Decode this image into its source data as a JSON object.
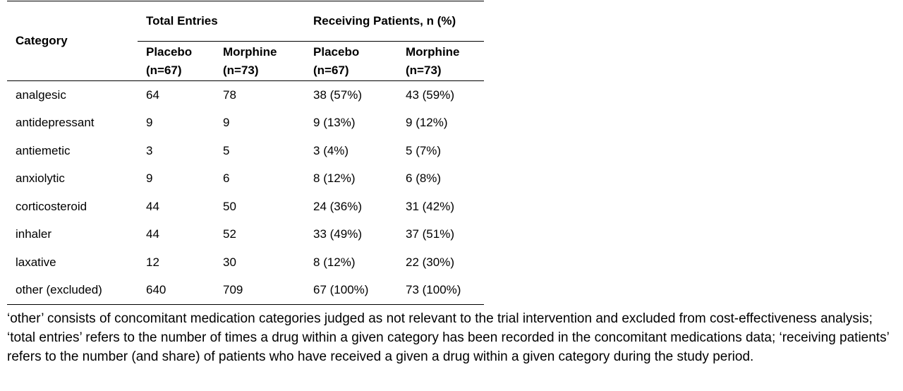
{
  "table": {
    "header": {
      "category": "Category",
      "groups": [
        "Total Entries",
        "Receiving Patients, n (%)"
      ],
      "subheaders": [
        "Placebo (n=67)",
        "Morphine (n=73)",
        "Placebo (n=67)",
        "Morphine (n=73)"
      ]
    },
    "rows": [
      [
        "analgesic",
        64,
        78,
        "38 (57%)",
        "43 (59%)"
      ],
      [
        "antidepressant",
        9,
        9,
        "9 (13%)",
        "9 (12%)"
      ],
      [
        "antiemetic",
        3,
        5,
        "3 (4%)",
        "5 (7%)"
      ],
      [
        "anxiolytic",
        9,
        6,
        "8 (12%)",
        "6 (8%)"
      ],
      [
        "corticosteroid",
        44,
        50,
        "24 (36%)",
        "31 (42%)"
      ],
      [
        "inhaler",
        44,
        52,
        "33 (49%)",
        "37 (51%)"
      ],
      [
        "laxative",
        12,
        30,
        "8 (12%)",
        "22 (30%)"
      ],
      [
        "other (excluded)",
        640,
        709,
        "67 (100%)",
        "73 (100%)"
      ]
    ]
  },
  "footnote": "‘other’ consists of concomitant medication categories judged as not relevant to the trial intervention and excluded from cost-effectiveness analysis; ‘total entries’ refers to the number of times a drug within a given category has been recorded in the concomitant medications data; ‘receiving patients’ refers to the number (and share) of patients who have received a given a drug within a given category during the study period."
}
